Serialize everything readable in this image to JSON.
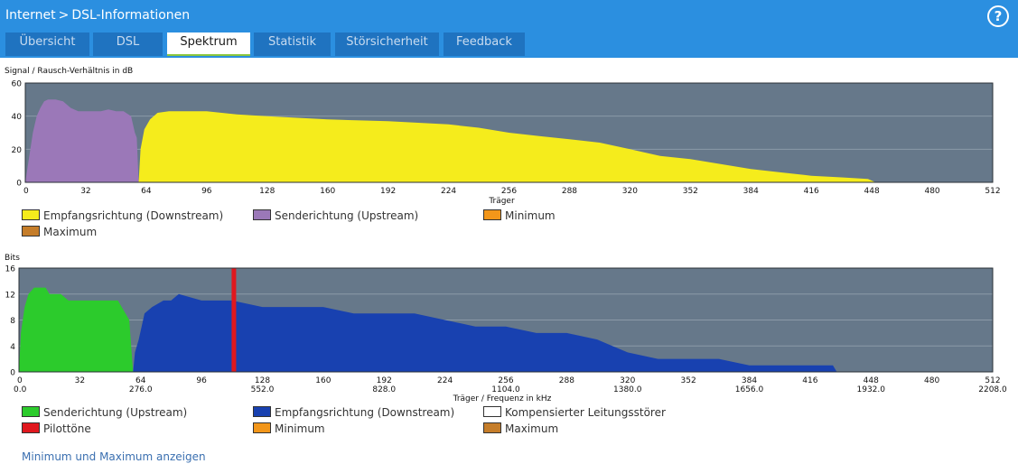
{
  "header": {
    "breadcrumb": {
      "section": "Internet",
      "separator": ">",
      "page": "DSL-Informationen"
    },
    "help_glyph": "?",
    "tabs": [
      {
        "label": "Übersicht",
        "active": false
      },
      {
        "label": "DSL",
        "active": false
      },
      {
        "label": "Spektrum",
        "active": true
      },
      {
        "label": "Statistik",
        "active": false
      },
      {
        "label": "Störsicherheit",
        "active": false
      },
      {
        "label": "Feedback",
        "active": false
      }
    ]
  },
  "colors": {
    "header_bg": "#2b8fe0",
    "tab_bg": "#1f73c0",
    "chart_bg": "#66788a",
    "downstream_snr": "#f5ec1c",
    "upstream_snr": "#9b78b8",
    "upstream_bits": "#2ccb2c",
    "downstream_bits": "#1841b0",
    "pilot": "#e0181e",
    "minimum": "#f2961a",
    "maximum": "#c57d2a",
    "compensated": "#ffffff"
  },
  "chart_data": [
    {
      "type": "area",
      "title": "Signal / Rausch-Verhältnis in dB",
      "xlabel": "Träger",
      "ylabel": "Signal / Rausch-Verhältnis in dB",
      "xlim": [
        0,
        512
      ],
      "ylim": [
        0,
        60
      ],
      "x_ticks": [
        "0",
        "32",
        "64",
        "96",
        "128",
        "160",
        "192",
        "224",
        "256",
        "288",
        "320",
        "352",
        "384",
        "416",
        "448",
        "480",
        "512"
      ],
      "y_ticks": [
        "0",
        "20",
        "40",
        "60"
      ],
      "series": [
        {
          "name": "Senderichtung (Upstream)",
          "points": [
            [
              0,
              0
            ],
            [
              2,
              15
            ],
            [
              4,
              30
            ],
            [
              6,
              40
            ],
            [
              8,
              45
            ],
            [
              10,
              49
            ],
            [
              12,
              50
            ],
            [
              16,
              50
            ],
            [
              20,
              49
            ],
            [
              24,
              45
            ],
            [
              28,
              43
            ],
            [
              32,
              43
            ],
            [
              40,
              43
            ],
            [
              44,
              44
            ],
            [
              48,
              43
            ],
            [
              52,
              43
            ],
            [
              56,
              40
            ],
            [
              58,
              30
            ],
            [
              59,
              27
            ],
            [
              60,
              0
            ]
          ]
        },
        {
          "name": "Empfangsrichtung (Downstream)",
          "points": [
            [
              60,
              0
            ],
            [
              61,
              20
            ],
            [
              63,
              32
            ],
            [
              66,
              38
            ],
            [
              70,
              42
            ],
            [
              76,
              43
            ],
            [
              96,
              43
            ],
            [
              104,
              42
            ],
            [
              112,
              41
            ],
            [
              128,
              40
            ],
            [
              144,
              39
            ],
            [
              160,
              38
            ],
            [
              192,
              37
            ],
            [
              224,
              35
            ],
            [
              240,
              33
            ],
            [
              256,
              30
            ],
            [
              272,
              28
            ],
            [
              288,
              26
            ],
            [
              304,
              24
            ],
            [
              320,
              20
            ],
            [
              336,
              16
            ],
            [
              352,
              14
            ],
            [
              368,
              11
            ],
            [
              384,
              8
            ],
            [
              400,
              6
            ],
            [
              416,
              4
            ],
            [
              432,
              3
            ],
            [
              446,
              2
            ],
            [
              450,
              0
            ]
          ]
        }
      ]
    },
    {
      "type": "area",
      "title": "Bits",
      "xlabel": "Träger / Frequenz in kHz",
      "ylabel": "Bits",
      "xlim": [
        0,
        512
      ],
      "ylim": [
        0,
        16
      ],
      "x_ticks": [
        "0",
        "32",
        "64",
        "96",
        "128",
        "160",
        "192",
        "224",
        "256",
        "288",
        "320",
        "352",
        "384",
        "416",
        "448",
        "480",
        "512"
      ],
      "y_ticks": [
        "0",
        "4",
        "8",
        "12",
        "16"
      ],
      "freq_ticks": [
        {
          "x": 0,
          "label": "0.0"
        },
        {
          "x": 64,
          "label": "276.0"
        },
        {
          "x": 128,
          "label": "552.0"
        },
        {
          "x": 192,
          "label": "828.0"
        },
        {
          "x": 256,
          "label": "1104.0"
        },
        {
          "x": 320,
          "label": "1380.0"
        },
        {
          "x": 384,
          "label": "1656.0"
        },
        {
          "x": 448,
          "label": "1932.0"
        },
        {
          "x": 512,
          "label": "2208.0"
        }
      ],
      "series": [
        {
          "name": "Senderichtung (Upstream)",
          "points": [
            [
              0,
              0
            ],
            [
              1,
              6
            ],
            [
              3,
              10
            ],
            [
              5,
              12
            ],
            [
              8,
              13
            ],
            [
              10,
              13
            ],
            [
              14,
              13
            ],
            [
              16,
              12
            ],
            [
              22,
              12
            ],
            [
              26,
              11
            ],
            [
              38,
              11
            ],
            [
              42,
              11
            ],
            [
              48,
              11
            ],
            [
              52,
              11
            ],
            [
              56,
              9
            ],
            [
              58,
              8
            ],
            [
              60,
              0
            ]
          ]
        },
        {
          "name": "Empfangsrichtung (Downstream)",
          "points": [
            [
              60,
              0
            ],
            [
              61,
              3
            ],
            [
              63,
              5
            ],
            [
              66,
              9
            ],
            [
              70,
              10
            ],
            [
              76,
              11
            ],
            [
              80,
              11
            ],
            [
              84,
              12
            ],
            [
              96,
              11
            ],
            [
              108,
              11
            ],
            [
              112,
              11
            ],
            [
              128,
              10
            ],
            [
              160,
              10
            ],
            [
              176,
              9
            ],
            [
              192,
              9
            ],
            [
              208,
              9
            ],
            [
              224,
              8
            ],
            [
              240,
              7
            ],
            [
              256,
              7
            ],
            [
              272,
              6
            ],
            [
              288,
              6
            ],
            [
              304,
              5
            ],
            [
              312,
              4
            ],
            [
              320,
              3
            ],
            [
              336,
              2
            ],
            [
              352,
              2
            ],
            [
              368,
              2
            ],
            [
              384,
              1
            ],
            [
              400,
              1
            ],
            [
              416,
              1
            ],
            [
              428,
              1
            ],
            [
              430,
              0
            ]
          ]
        },
        {
          "name": "Pilottöne",
          "x": 113
        }
      ]
    }
  ],
  "snr_legend": [
    {
      "label": "Empfangsrichtung (Downstream)",
      "color": "#f5ec1c"
    },
    {
      "label": "Senderichtung (Upstream)",
      "color": "#9b78b8"
    },
    {
      "label": "Minimum",
      "color": "#f2961a"
    },
    {
      "label": "Maximum",
      "color": "#c57d2a"
    }
  ],
  "bits_legend": [
    {
      "label": "Senderichtung (Upstream)",
      "color": "#2ccb2c"
    },
    {
      "label": "Empfangsrichtung (Downstream)",
      "color": "#1841b0"
    },
    {
      "label": "Kompensierter Leitungsstörer",
      "color": "#ffffff"
    },
    {
      "label": "Pilottöne",
      "color": "#e0181e"
    },
    {
      "label": "Minimum",
      "color": "#f2961a"
    },
    {
      "label": "Maximum",
      "color": "#c57d2a"
    }
  ],
  "minmax_link": "Minimum und Maximum anzeigen"
}
